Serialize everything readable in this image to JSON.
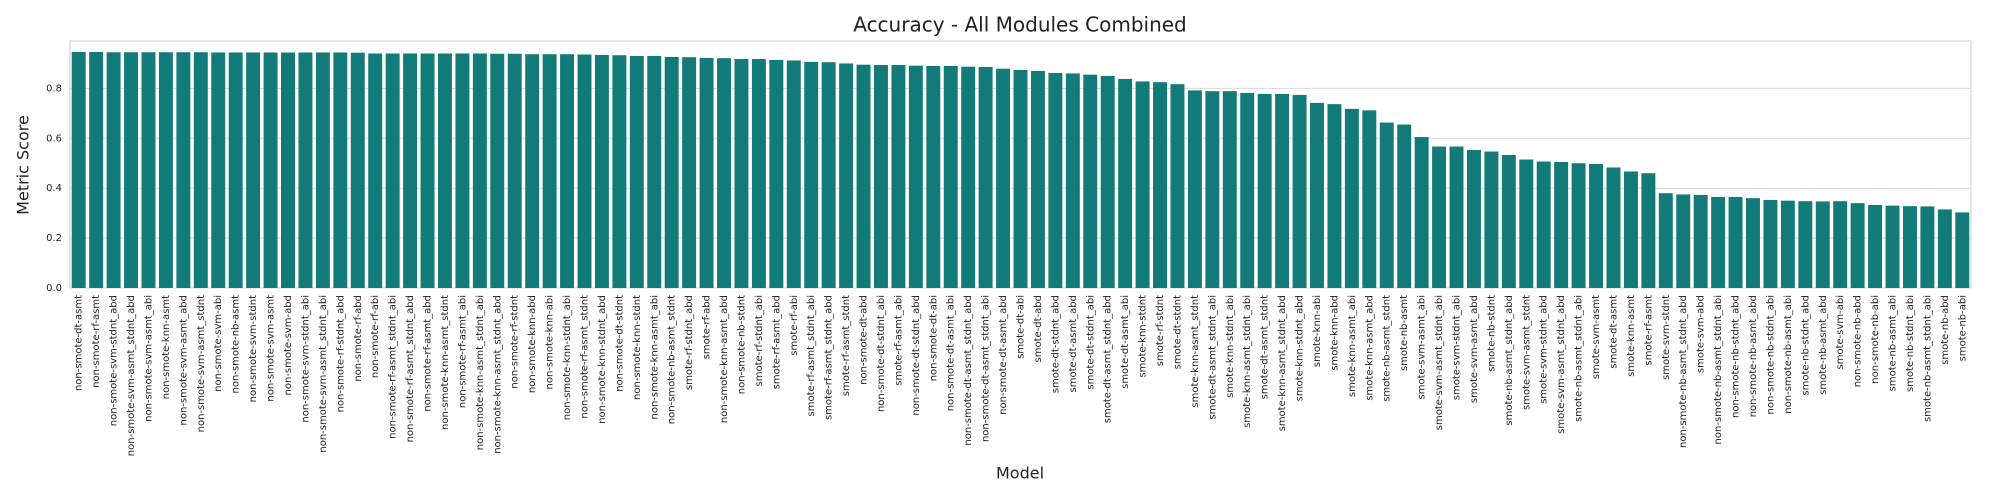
{
  "chart_data": {
    "type": "bar",
    "title": "Accuracy - All Modules Combined",
    "x_label": "Model",
    "y_label": "Metric Score",
    "categories": [
      "non-smote-dt-asmt",
      "non-smote-rf-asmt",
      "non-smote-svm-stdnt_abd",
      "non-smote-svm-asmt_stdnt_abd",
      "non-smote-svm-asmt_abi",
      "non-smote-knn-asmt",
      "non-smote-svm-asmt_abd",
      "non-smote-svm-asmt_stdnt",
      "non-smote-svm-abi",
      "non-smote-nb-asmt",
      "non-smote-svm-stdnt",
      "non-smote-svm-asmt",
      "non-smote-svm-abd",
      "non-smote-svm-stdnt_abi",
      "non-smote-svm-asmt_stdnt_abi",
      "non-smote-rf-stdnt_abd",
      "non-smote-rf-abd",
      "non-smote-rf-abi",
      "non-smote-rf-asmt_stdnt_abi",
      "non-smote-rf-asmt_stdnt_abd",
      "non-smote-rf-asmt_abd",
      "non-smote-knn-asmt_stdnt",
      "non-smote-rf-asmt_abi",
      "non-smote-knn-asmt_stdnt_abi",
      "non-smote-knn-asmt_stdnt_abd",
      "non-smote-rf-stdnt",
      "non-smote-knn-abd",
      "non-smote-knn-abi",
      "non-smote-knn-stdnt_abi",
      "non-smote-rf-asmt_stdnt",
      "non-smote-knn-stdnt_abd",
      "non-smote-dt-stdnt",
      "non-smote-knn-stdnt",
      "non-smote-knn-asmt_abi",
      "non-smote-nb-asmt_stdnt",
      "smote-rf-stdnt_abd",
      "smote-rf-abd",
      "non-smote-knn-asmt_abd",
      "non-smote-nb-stdnt",
      "smote-rf-stdnt_abi",
      "smote-rf-asmt_abd",
      "smote-rf-abi",
      "smote-rf-asmt_stdnt_abi",
      "smote-rf-asmt_stdnt_abd",
      "smote-rf-asmt_stdnt",
      "non-smote-dt-abd",
      "non-smote-dt-stdnt_abi",
      "smote-rf-asmt_abi",
      "non-smote-dt-stdnt_abd",
      "non-smote-dt-abi",
      "non-smote-dt-asmt_abi",
      "non-smote-dt-asmt_stdnt_abd",
      "non-smote-dt-asmt_stdnt_abi",
      "non-smote-dt-asmt_abd",
      "smote-dt-abi",
      "smote-dt-abd",
      "smote-dt-stdnt_abd",
      "smote-dt-asmt_abd",
      "smote-dt-stdnt_abi",
      "smote-dt-asmt_stdnt_abd",
      "smote-dt-asmt_abi",
      "smote-knn-stdnt",
      "smote-rf-stdnt",
      "smote-dt-stdnt",
      "smote-knn-asmt_stdnt",
      "smote-dt-asmt_stdnt_abi",
      "smote-knn-stdnt_abi",
      "smote-knn-asmt_stdnt_abi",
      "smote-dt-asmt_stdnt",
      "smote-knn-asmt_stdnt_abd",
      "smote-knn-stdnt_abd",
      "smote-knn-abi",
      "smote-knn-abd",
      "smote-knn-asmt_abi",
      "smote-knn-asmt_abd",
      "smote-nb-asmt_stdnt",
      "smote-nb-asmt",
      "smote-svm-asmt_abi",
      "smote-svm-asmt_stdnt_abi",
      "smote-svm-stdnt_abi",
      "smote-svm-asmt_abd",
      "smote-nb-stdnt",
      "smote-nb-asmt_stdnt_abd",
      "smote-svm-asmt_stdnt",
      "smote-svm-stdnt_abd",
      "smote-svm-asmt_stdnt_abd",
      "smote-nb-asmt_stdnt_abi",
      "smote-svm-asmt",
      "smote-dt-asmt",
      "smote-knn-asmt",
      "smote-rf-asmt",
      "smote-svm-stdnt",
      "non-smote-nb-asmt_stdnt_abd",
      "smote-svm-abd",
      "non-smote-nb-asmt_stdnt_abi",
      "non-smote-nb-stdnt_abd",
      "non-smote-nb-asmt_abd",
      "non-smote-nb-stdnt_abi",
      "non-smote-nb-asmt_abi",
      "smote-nb-stdnt_abd",
      "smote-nb-asmt_abd",
      "smote-svm-abi",
      "non-smote-nb-abd",
      "non-smote-nb-abi",
      "smote-nb-asmt_abi",
      "smote-nb-stdnt_abi",
      "smote-nb-asmt_stdnt_abi",
      "smote-nb-abd",
      "smote-nb-abi"
    ],
    "values": [
      0.946,
      0.946,
      0.945,
      0.945,
      0.945,
      0.945,
      0.945,
      0.945,
      0.944,
      0.944,
      0.944,
      0.944,
      0.944,
      0.944,
      0.944,
      0.944,
      0.943,
      0.94,
      0.94,
      0.94,
      0.94,
      0.94,
      0.94,
      0.94,
      0.939,
      0.939,
      0.937,
      0.937,
      0.937,
      0.936,
      0.934,
      0.933,
      0.93,
      0.93,
      0.926,
      0.925,
      0.922,
      0.921,
      0.918,
      0.918,
      0.914,
      0.912,
      0.906,
      0.905,
      0.9,
      0.895,
      0.894,
      0.894,
      0.891,
      0.89,
      0.89,
      0.887,
      0.886,
      0.879,
      0.874,
      0.87,
      0.862,
      0.86,
      0.855,
      0.85,
      0.838,
      0.828,
      0.825,
      0.817,
      0.792,
      0.789,
      0.789,
      0.782,
      0.778,
      0.778,
      0.774,
      0.742,
      0.737,
      0.718,
      0.712,
      0.663,
      0.655,
      0.605,
      0.567,
      0.567,
      0.553,
      0.547,
      0.533,
      0.515,
      0.507,
      0.505,
      0.5,
      0.497,
      0.483,
      0.467,
      0.46,
      0.38,
      0.375,
      0.373,
      0.365,
      0.365,
      0.36,
      0.353,
      0.35,
      0.348,
      0.347,
      0.348,
      0.34,
      0.333,
      0.33,
      0.328,
      0.327,
      0.315,
      0.303
    ],
    "color": "#137a7a",
    "ylim": [
      0,
      0.99
    ],
    "yticks": [
      {
        "value": 0,
        "label": "0.0"
      },
      0.2,
      0.4,
      0.6,
      0.8
    ],
    "grid": true
  }
}
